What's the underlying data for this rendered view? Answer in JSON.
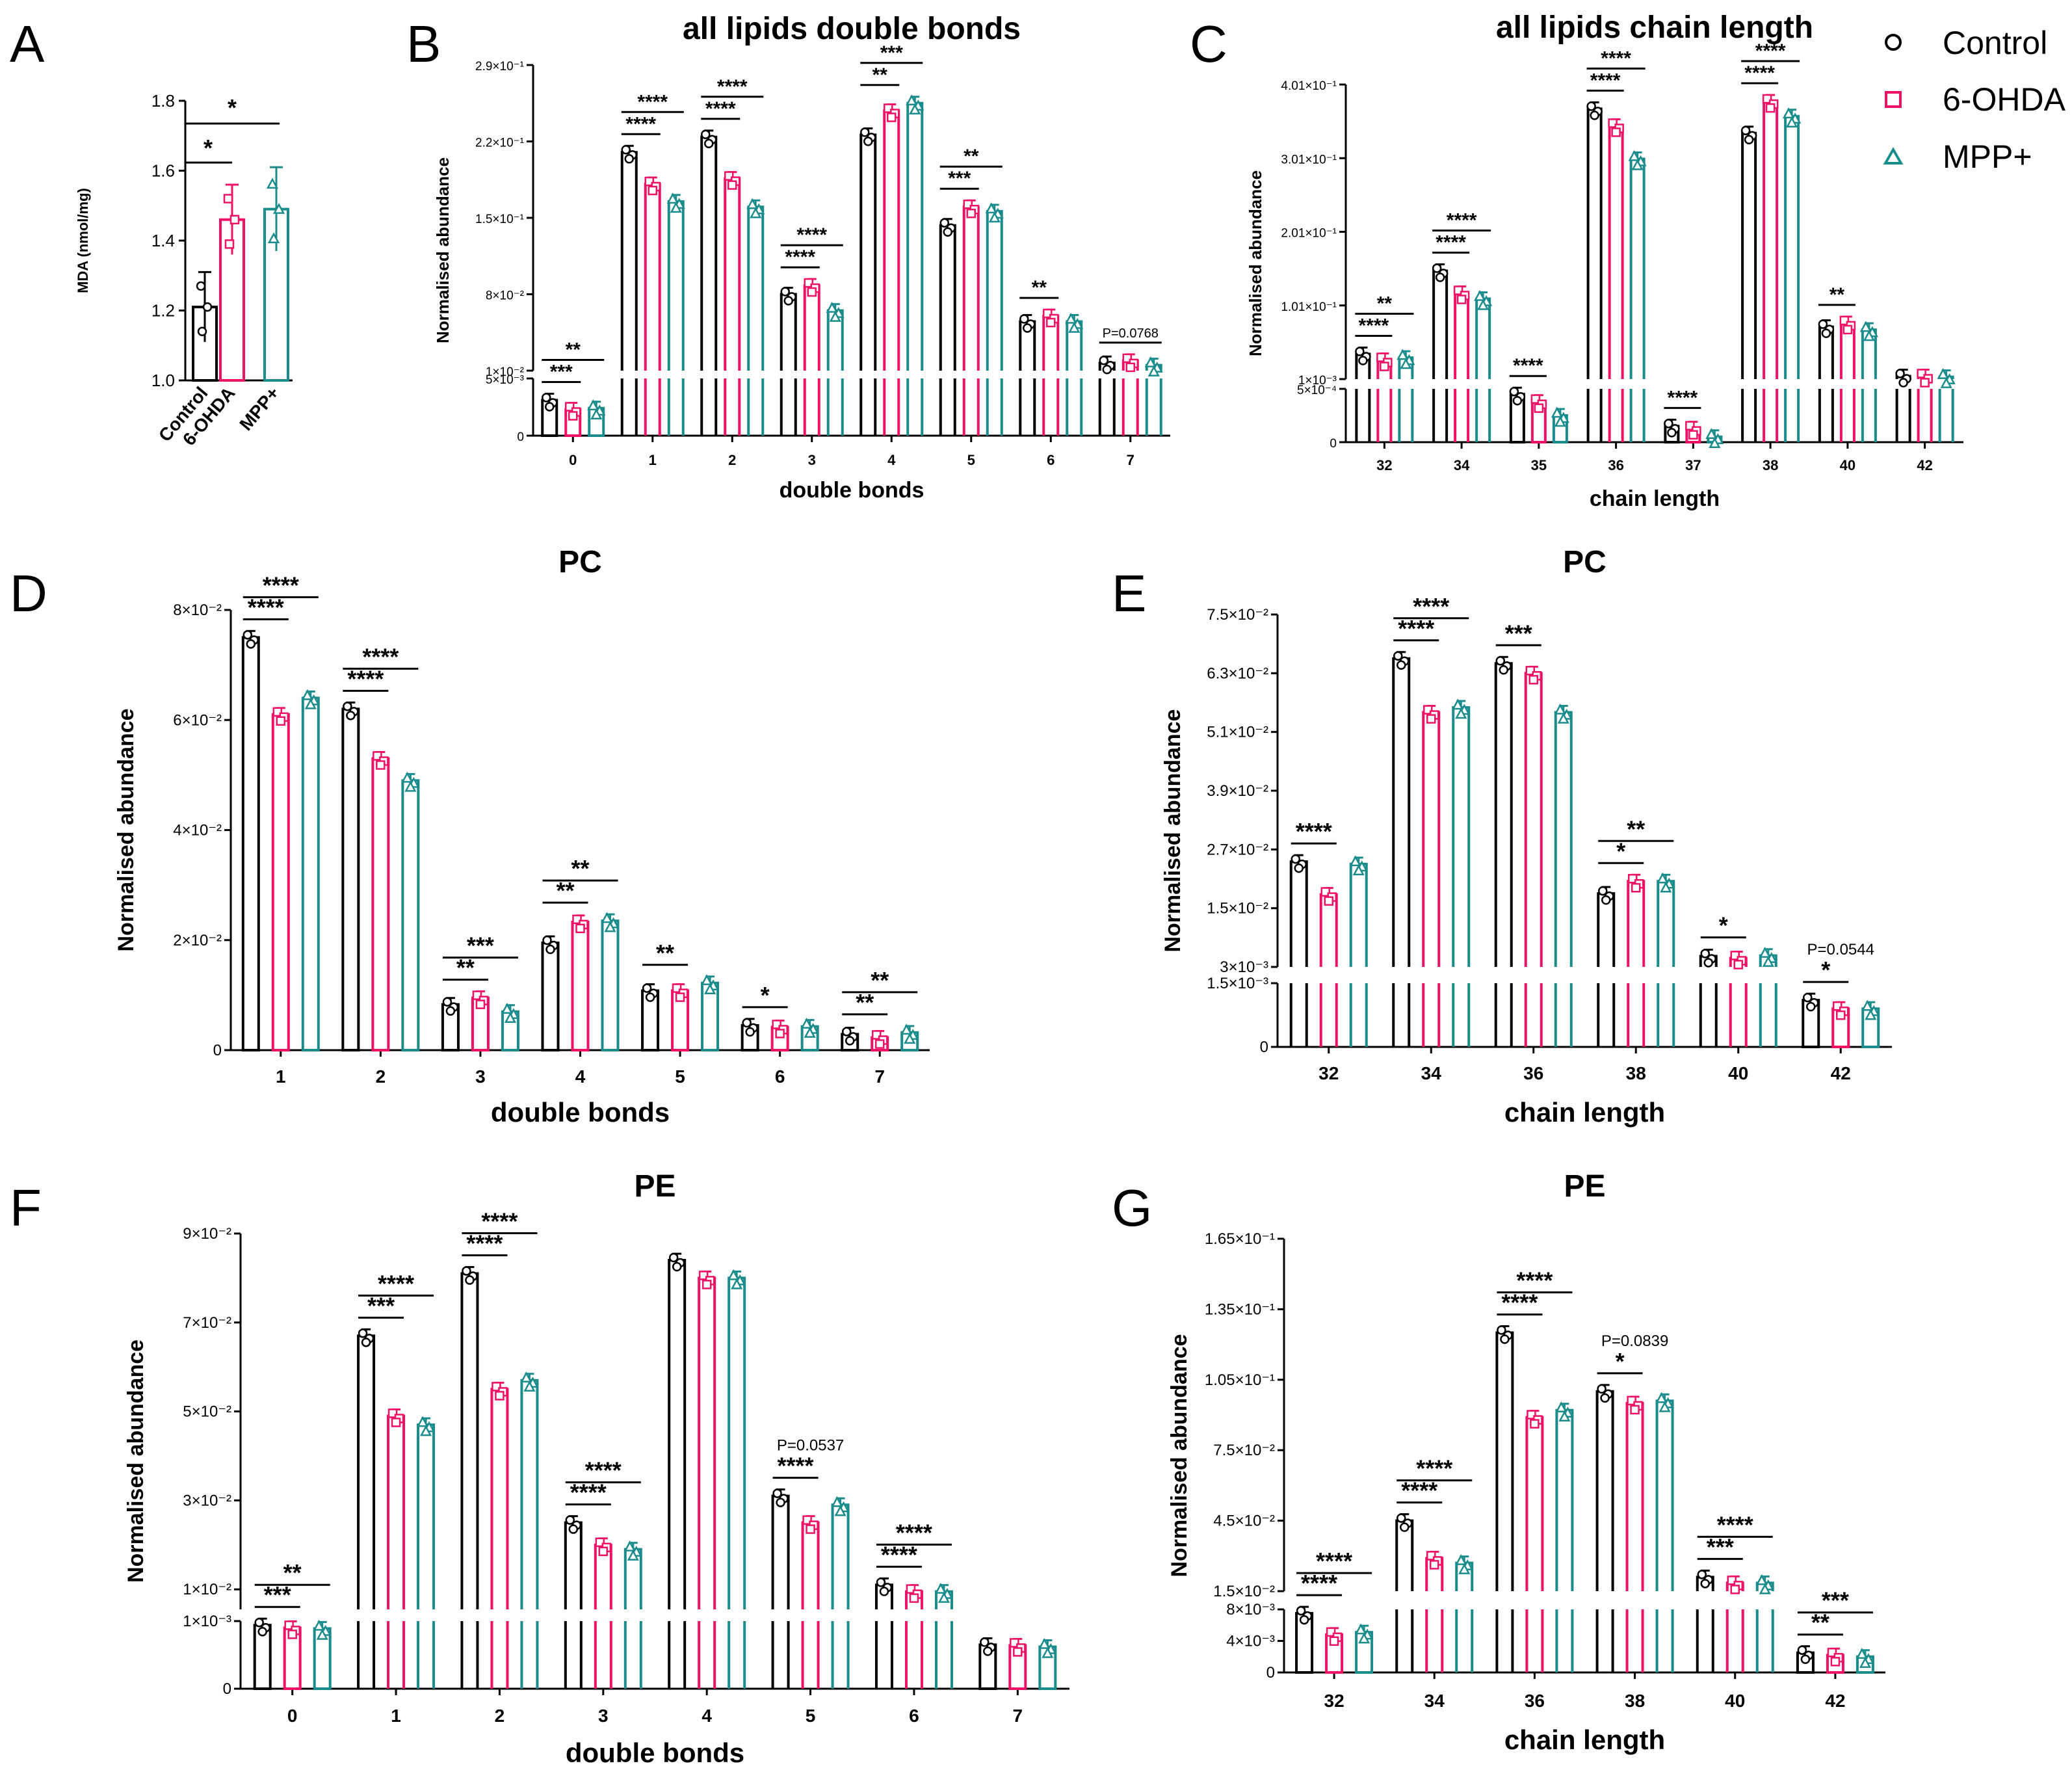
{
  "colors": {
    "control": "#000000",
    "ohda": "#ee1166",
    "mpp": "#1a8c8c"
  },
  "legend": {
    "control": "Control",
    "ohda": "6-OHDA",
    "mpp": "MPP+"
  },
  "chart_data": [
    {
      "id": "A",
      "panel_label": "A",
      "type": "bar",
      "title": "",
      "xlabel": "",
      "ylabel": "MDA (nmol/mg)",
      "categories": [
        "Control",
        "6-OHDA",
        "MPP+"
      ],
      "values": [
        1.21,
        1.46,
        1.49
      ],
      "errors": [
        0.1,
        0.1,
        0.12
      ],
      "ylim": [
        1.0,
        1.8
      ],
      "yticks": [
        {
          "v": 1.0,
          "t": "1.0"
        },
        {
          "v": 1.2,
          "t": "1.2"
        },
        {
          "v": 1.4,
          "t": "1.4"
        },
        {
          "v": 1.6,
          "t": "1.6"
        },
        {
          "v": 1.8,
          "t": "1.8"
        }
      ],
      "annotations": [
        {
          "text": "*",
          "from": "6-OHDA",
          "to": "Control"
        },
        {
          "text": "*",
          "from": "MPP+",
          "to": "Control"
        }
      ]
    },
    {
      "id": "B",
      "panel_label": "B",
      "type": "bar",
      "title": "all lipids double bonds",
      "xlabel": "double bonds",
      "ylabel": "Normalised abundance",
      "categories": [
        "0",
        "1",
        "2",
        "3",
        "4",
        "5",
        "6",
        "7"
      ],
      "series": [
        {
          "name": "Control",
          "values": [
            0.0031,
            0.21,
            0.224,
            0.08,
            0.226,
            0.143,
            0.055,
            0.017
          ]
        },
        {
          "name": "6-OHDA",
          "values": [
            0.0023,
            0.181,
            0.186,
            0.088,
            0.248,
            0.16,
            0.06,
            0.019
          ]
        },
        {
          "name": "MPP+",
          "values": [
            0.0024,
            0.165,
            0.16,
            0.065,
            0.255,
            0.156,
            0.055,
            0.015
          ]
        }
      ],
      "annotations": [
        {
          "category": "0",
          "stars": [
            "***",
            "**"
          ]
        },
        {
          "category": "1",
          "stars": [
            "****",
            "****"
          ]
        },
        {
          "category": "2",
          "stars": [
            "****",
            "****"
          ]
        },
        {
          "category": "3",
          "stars": [
            "****",
            "****"
          ]
        },
        {
          "category": "4",
          "stars": [
            "**",
            "***"
          ]
        },
        {
          "category": "5",
          "stars": [
            "***",
            "**"
          ]
        },
        {
          "category": "6",
          "stars": [
            "**"
          ]
        },
        {
          "category": "7",
          "pvalue": "P=0.0768"
        }
      ]
    },
    {
      "id": "C",
      "panel_label": "C",
      "type": "bar",
      "title": "all lipids chain length",
      "xlabel": "chain length",
      "ylabel": "Normalised abundance",
      "categories": [
        "32",
        "34",
        "35",
        "36",
        "37",
        "38",
        "40",
        "42"
      ],
      "series": [
        {
          "name": "Control",
          "values": [
            0.035,
            0.148,
            0.00045,
            0.368,
            0.00015,
            0.335,
            0.072,
            0.005
          ]
        },
        {
          "name": "6-OHDA",
          "values": [
            0.027,
            0.118,
            0.00038,
            0.345,
            0.00013,
            0.378,
            0.077,
            0.005
          ]
        },
        {
          "name": "MPP+",
          "values": [
            0.03,
            0.11,
            0.00025,
            0.3,
            5e-05,
            0.358,
            0.068,
            0.004
          ]
        }
      ],
      "annotations": [
        {
          "category": "32",
          "stars": [
            "****",
            "**"
          ]
        },
        {
          "category": "34",
          "stars": [
            "****",
            "****"
          ]
        },
        {
          "category": "35",
          "stars": [
            "****"
          ]
        },
        {
          "category": "36",
          "stars": [
            "****",
            "****"
          ]
        },
        {
          "category": "37",
          "stars": [
            "****"
          ]
        },
        {
          "category": "38",
          "stars": [
            "****",
            "****"
          ]
        },
        {
          "category": "40",
          "stars": [
            "**"
          ]
        }
      ]
    },
    {
      "id": "D",
      "panel_label": "D",
      "type": "bar",
      "title": "PC",
      "xlabel": "double bonds",
      "ylabel": "Normalised abundance",
      "categories": [
        "1",
        "2",
        "3",
        "4",
        "5",
        "6",
        "7"
      ],
      "series": [
        {
          "name": "Control",
          "values": [
            0.075,
            0.062,
            0.0083,
            0.0195,
            0.0108,
            0.0045,
            0.0029
          ]
        },
        {
          "name": "6-OHDA",
          "values": [
            0.061,
            0.053,
            0.0095,
            0.0233,
            0.0108,
            0.0042,
            0.0023
          ]
        },
        {
          "name": "MPP+",
          "values": [
            0.064,
            0.049,
            0.007,
            0.0235,
            0.0122,
            0.0043,
            0.0032
          ]
        }
      ],
      "annotations": [
        {
          "category": "1",
          "stars": [
            "****",
            "****"
          ]
        },
        {
          "category": "2",
          "stars": [
            "****",
            "****"
          ]
        },
        {
          "category": "3",
          "stars": [
            "**",
            "***"
          ]
        },
        {
          "category": "4",
          "stars": [
            "**",
            "**"
          ]
        },
        {
          "category": "5",
          "stars": [
            "**"
          ]
        },
        {
          "category": "6",
          "stars": [
            "*"
          ]
        },
        {
          "category": "7",
          "stars": [
            "**",
            "**"
          ]
        }
      ]
    },
    {
      "id": "E",
      "panel_label": "E",
      "type": "bar",
      "title": "PC",
      "xlabel": "chain length",
      "ylabel": "Normalised abundance",
      "categories": [
        "32",
        "34",
        "36",
        "38",
        "40",
        "42"
      ],
      "series": [
        {
          "name": "Control",
          "values": [
            0.0245,
            0.066,
            0.065,
            0.018,
            0.0052,
            0.0011
          ]
        },
        {
          "name": "6-OHDA",
          "values": [
            0.0178,
            0.055,
            0.063,
            0.0205,
            0.0048,
            0.0009
          ]
        },
        {
          "name": "MPP+",
          "values": [
            0.024,
            0.056,
            0.055,
            0.0205,
            0.0053,
            0.0009
          ]
        }
      ],
      "annotations": [
        {
          "category": "32",
          "stars": [
            "****"
          ]
        },
        {
          "category": "34",
          "stars": [
            "****",
            "****"
          ]
        },
        {
          "category": "36",
          "stars": [
            "***"
          ]
        },
        {
          "category": "38",
          "stars": [
            "*",
            "**"
          ]
        },
        {
          "category": "40",
          "stars": [
            "*"
          ]
        },
        {
          "category": "42",
          "stars": [
            "*"
          ],
          "pvalue": "P=0.0544"
        }
      ]
    },
    {
      "id": "F",
      "panel_label": "F",
      "type": "bar",
      "title": "PE",
      "xlabel": "double bonds",
      "ylabel": "Normalised abundance",
      "categories": [
        "0",
        "1",
        "2",
        "3",
        "4",
        "5",
        "6",
        "7"
      ],
      "series": [
        {
          "name": "Control",
          "values": [
            0.00094,
            0.067,
            0.081,
            0.025,
            0.084,
            0.031,
            0.011,
            0.00065
          ]
        },
        {
          "name": "6-OHDA",
          "values": [
            0.0009,
            0.049,
            0.055,
            0.02,
            0.08,
            0.025,
            0.0095,
            0.00064
          ]
        },
        {
          "name": "MPP+",
          "values": [
            0.00089,
            0.047,
            0.057,
            0.019,
            0.08,
            0.029,
            0.0095,
            0.00062
          ]
        }
      ],
      "annotations": [
        {
          "category": "0",
          "stars": [
            "***",
            "**"
          ]
        },
        {
          "category": "1",
          "stars": [
            "***",
            "****"
          ]
        },
        {
          "category": "2",
          "stars": [
            "****",
            "****"
          ]
        },
        {
          "category": "3",
          "stars": [
            "****",
            "****"
          ]
        },
        {
          "category": "5",
          "stars": [
            "****"
          ],
          "pvalue": "P=0.0537"
        },
        {
          "category": "6",
          "stars": [
            "****",
            "****"
          ]
        }
      ]
    },
    {
      "id": "G",
      "panel_label": "G",
      "type": "bar",
      "title": "PE",
      "xlabel": "chain length",
      "ylabel": "Normalised abundance",
      "categories": [
        "32",
        "34",
        "36",
        "38",
        "40",
        "42"
      ],
      "series": [
        {
          "name": "Control",
          "values": [
            0.0075,
            0.045,
            0.125,
            0.1,
            0.021,
            0.0025
          ]
        },
        {
          "name": "6-OHDA",
          "values": [
            0.0048,
            0.029,
            0.089,
            0.095,
            0.0185,
            0.0022
          ]
        },
        {
          "name": "MPP+",
          "values": [
            0.0051,
            0.027,
            0.092,
            0.096,
            0.0185,
            0.002
          ]
        }
      ],
      "annotations": [
        {
          "category": "32",
          "stars": [
            "****",
            "****"
          ]
        },
        {
          "category": "34",
          "stars": [
            "****",
            "****"
          ]
        },
        {
          "category": "36",
          "stars": [
            "****",
            "****"
          ]
        },
        {
          "category": "38",
          "stars": [
            "*"
          ],
          "pvalue": "P=0.0839"
        },
        {
          "category": "40",
          "stars": [
            "***",
            "****"
          ]
        },
        {
          "category": "42",
          "stars": [
            "**",
            "***"
          ]
        }
      ]
    }
  ],
  "axis_ticks": {
    "B": {
      "top": [
        {
          "v": 0.01,
          "t": "1×10⁻²"
        },
        {
          "v": 0.08,
          "t": "8×10⁻²"
        },
        {
          "v": 0.15,
          "t": "1.5×10⁻¹"
        },
        {
          "v": 0.22,
          "t": "2.2×10⁻¹"
        },
        {
          "v": 0.29,
          "t": "2.9×10⁻¹"
        }
      ],
      "bottom": [
        {
          "v": 0,
          "t": "0"
        },
        {
          "v": 0.005,
          "t": "5×10⁻³"
        }
      ],
      "top_range": [
        0.01,
        0.29
      ],
      "bottom_range": [
        0,
        0.005
      ]
    },
    "C": {
      "top": [
        {
          "v": 0.001,
          "t": "1×10⁻³"
        },
        {
          "v": 0.101,
          "t": "1.01×10⁻¹"
        },
        {
          "v": 0.201,
          "t": "2.01×10⁻¹"
        },
        {
          "v": 0.301,
          "t": "3.01×10⁻¹"
        },
        {
          "v": 0.401,
          "t": "4.01×10⁻¹"
        }
      ],
      "bottom": [
        {
          "v": 0,
          "t": "0"
        },
        {
          "v": 0.0005,
          "t": "5×10⁻⁴"
        }
      ],
      "top_range": [
        0.001,
        0.401
      ],
      "bottom_range": [
        0,
        0.0005
      ]
    },
    "D": {
      "top": [
        {
          "v": 0,
          "t": "0"
        },
        {
          "v": 0.02,
          "t": "2×10⁻²"
        },
        {
          "v": 0.04,
          "t": "4×10⁻²"
        },
        {
          "v": 0.06,
          "t": "6×10⁻²"
        },
        {
          "v": 0.08,
          "t": "8×10⁻²"
        }
      ],
      "top_range": [
        0,
        0.08
      ]
    },
    "E": {
      "top": [
        {
          "v": 0.003,
          "t": "3×10⁻³"
        },
        {
          "v": 0.015,
          "t": "1.5×10⁻²"
        },
        {
          "v": 0.027,
          "t": "2.7×10⁻²"
        },
        {
          "v": 0.039,
          "t": "3.9×10⁻²"
        },
        {
          "v": 0.051,
          "t": "5.1×10⁻²"
        },
        {
          "v": 0.063,
          "t": "6.3×10⁻²"
        },
        {
          "v": 0.075,
          "t": "7.5×10⁻²"
        }
      ],
      "bottom": [
        {
          "v": 0,
          "t": "0"
        },
        {
          "v": 0.0015,
          "t": "1.5×10⁻³"
        }
      ],
      "top_range": [
        0.003,
        0.075
      ],
      "bottom_range": [
        0,
        0.0015
      ]
    },
    "F": {
      "top": [
        {
          "v": 0.01,
          "t": "1×10⁻²"
        },
        {
          "v": 0.03,
          "t": "3×10⁻²"
        },
        {
          "v": 0.05,
          "t": "5×10⁻²"
        },
        {
          "v": 0.07,
          "t": "7×10⁻²"
        },
        {
          "v": 0.09,
          "t": "9×10⁻²"
        }
      ],
      "bottom": [
        {
          "v": 0,
          "t": "0"
        },
        {
          "v": 0.001,
          "t": "1×10⁻³"
        }
      ],
      "top_range": [
        0.0055,
        0.09
      ],
      "bottom_range": [
        0,
        0.001
      ]
    },
    "G": {
      "top": [
        {
          "v": 0.015,
          "t": "1.5×10⁻²"
        },
        {
          "v": 0.045,
          "t": "4.5×10⁻²"
        },
        {
          "v": 0.075,
          "t": "7.5×10⁻²"
        },
        {
          "v": 0.105,
          "t": "1.05×10⁻¹"
        },
        {
          "v": 0.135,
          "t": "1.35×10⁻¹"
        },
        {
          "v": 0.165,
          "t": "1.65×10⁻¹"
        }
      ],
      "bottom": [
        {
          "v": 0,
          "t": "0"
        },
        {
          "v": 0.004,
          "t": "4×10⁻³"
        },
        {
          "v": 0.008,
          "t": "8×10⁻³"
        }
      ],
      "top_range": [
        0.015,
        0.165
      ],
      "bottom_range": [
        0,
        0.008
      ]
    }
  }
}
